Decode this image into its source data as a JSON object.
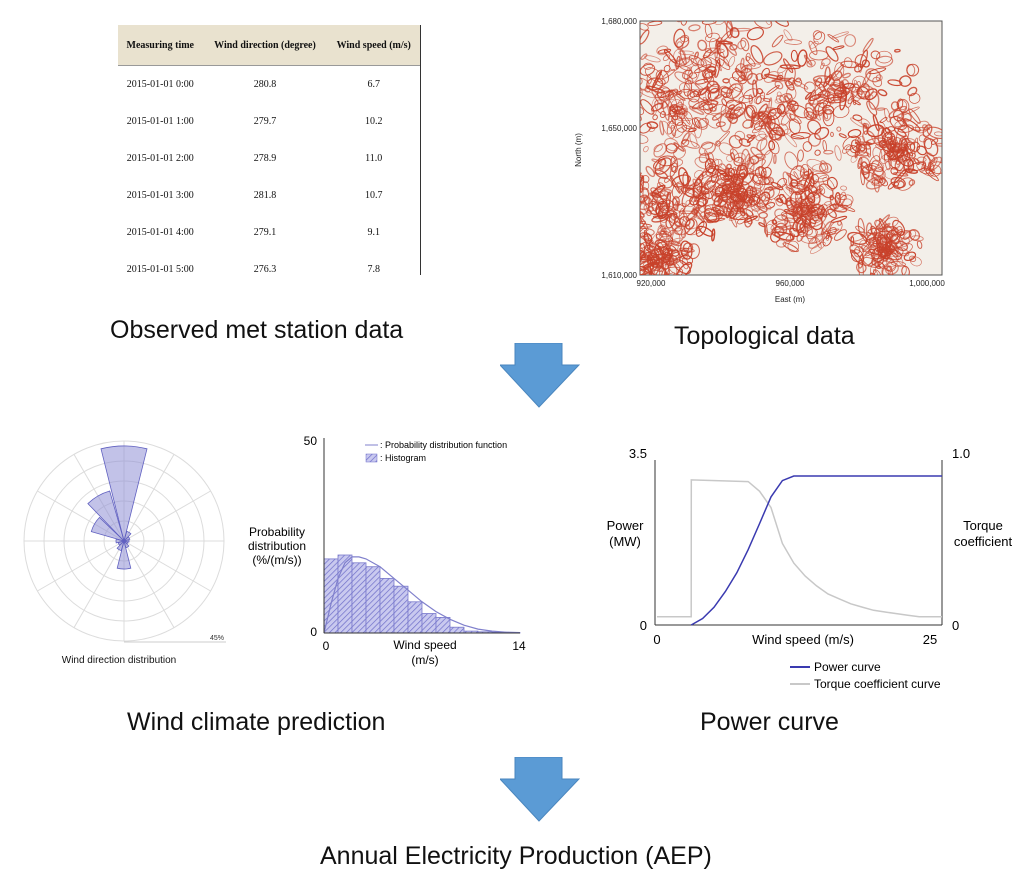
{
  "met_table": {
    "headers": [
      "Measuring time",
      "Wind direction (degree)",
      "Wind speed (m/s)"
    ],
    "rows": [
      [
        "2015-01-01 0:00",
        "280.8",
        "6.7"
      ],
      [
        "2015-01-01 1:00",
        "279.7",
        "10.2"
      ],
      [
        "2015-01-01 2:00",
        "278.9",
        "11.0"
      ],
      [
        "2015-01-01 3:00",
        "281.8",
        "10.7"
      ],
      [
        "2015-01-01 4:00",
        "279.1",
        "9.1"
      ],
      [
        "2015-01-01 5:00",
        "276.3",
        "7.8"
      ]
    ]
  },
  "topo_map": {
    "ylabel": "North (m)",
    "xlabel": "East (m)",
    "y_ticks": [
      "1,680,000",
      "1,650,000",
      "1,610,000"
    ],
    "x_ticks": [
      "920,000",
      "960,000",
      "1,000,000"
    ],
    "fill_color": "#c8412a"
  },
  "captions": {
    "met": "Observed met station data",
    "topo": "Topological data",
    "wind": "Wind climate prediction",
    "power": "Power curve",
    "aep": "Annual Electricity Production (AEP)"
  },
  "wind_rose": {
    "label": "Wind direction distribution",
    "max_label": "45%",
    "fill_color": "#8f8fd6"
  },
  "histogram": {
    "ylabel": "Probability distribution (%/(m/s))",
    "xlabel": "Wind speed (m/s)",
    "y_ticks": [
      "50",
      "0"
    ],
    "x_ticks": [
      "0",
      "14"
    ],
    "legend": [
      ": Probability distribution function",
      ": Histogram"
    ]
  },
  "power_curve": {
    "ylabel_left": "Power (MW)",
    "ylabel_right": "Torque coefficient",
    "xlabel": "Wind speed (m/s)",
    "left_ticks": [
      "3.5",
      "0"
    ],
    "right_ticks": [
      "1.0",
      "0"
    ],
    "x_ticks": [
      "0",
      "25"
    ],
    "legend": [
      "Power curve",
      "Torque coefficient curve"
    ]
  },
  "colors": {
    "arrow": "#5b9bd5",
    "power_line": "#3a3ab0",
    "torque_line": "#c8c8c8",
    "hist_fill": "#a6a6e0"
  },
  "chart_data": [
    {
      "type": "bar",
      "title": "",
      "xlabel": "Wind speed (m/s)",
      "ylabel": "Probability distribution (%/(m/s))",
      "ylim": [
        0,
        50
      ],
      "xlim": [
        0,
        14
      ],
      "bin_width": 1,
      "categories": [
        "0-1",
        "1-2",
        "2-3",
        "3-4",
        "4-5",
        "5-6",
        "6-7",
        "7-8",
        "8-9",
        "9-10",
        "10-11",
        "11-12",
        "12-13",
        "13-14"
      ],
      "series": [
        {
          "name": "Histogram",
          "values": [
            19,
            20,
            18,
            17,
            14,
            12,
            8,
            5,
            4,
            1.5,
            0.5,
            0.3,
            0.2,
            0.1
          ]
        },
        {
          "name": "Probability distribution function",
          "x": [
            0,
            0.5,
            1,
            1.5,
            2,
            2.5,
            3,
            4,
            5,
            6,
            7,
            8,
            9,
            10,
            11,
            12,
            13,
            14
          ],
          "values": [
            0,
            7.5,
            14,
            18,
            19.5,
            19.5,
            19,
            17,
            14,
            11,
            8,
            5.5,
            3.5,
            2,
            1,
            0.5,
            0.2,
            0.1
          ]
        }
      ]
    },
    {
      "type": "line",
      "title": "",
      "xlabel": "Wind speed (m/s)",
      "ylabel": "Power (MW)",
      "y2label": "Torque coefficient",
      "xlim": [
        0,
        25
      ],
      "ylim": [
        0,
        3.5
      ],
      "y2lim": [
        0,
        1.0
      ],
      "series": [
        {
          "name": "Power curve",
          "axis": "left",
          "x": [
            3,
            4,
            5,
            6,
            7,
            8,
            9,
            10,
            11,
            12,
            13,
            25
          ],
          "values": [
            0,
            0.14,
            0.38,
            0.72,
            1.12,
            1.62,
            2.18,
            2.75,
            3.1,
            3.2,
            3.2,
            3.2
          ]
        },
        {
          "name": "Torque coefficient curve",
          "axis": "right",
          "x": [
            0,
            3,
            3.01,
            8,
            9,
            10,
            11,
            12,
            13,
            14,
            15,
            16,
            17,
            18,
            19,
            20,
            21,
            22,
            23,
            24,
            25
          ],
          "values": [
            0.05,
            0.05,
            0.89,
            0.88,
            0.82,
            0.72,
            0.5,
            0.38,
            0.3,
            0.24,
            0.19,
            0.16,
            0.13,
            0.11,
            0.09,
            0.08,
            0.07,
            0.06,
            0.05,
            0.05,
            0.05
          ]
        }
      ]
    }
  ]
}
